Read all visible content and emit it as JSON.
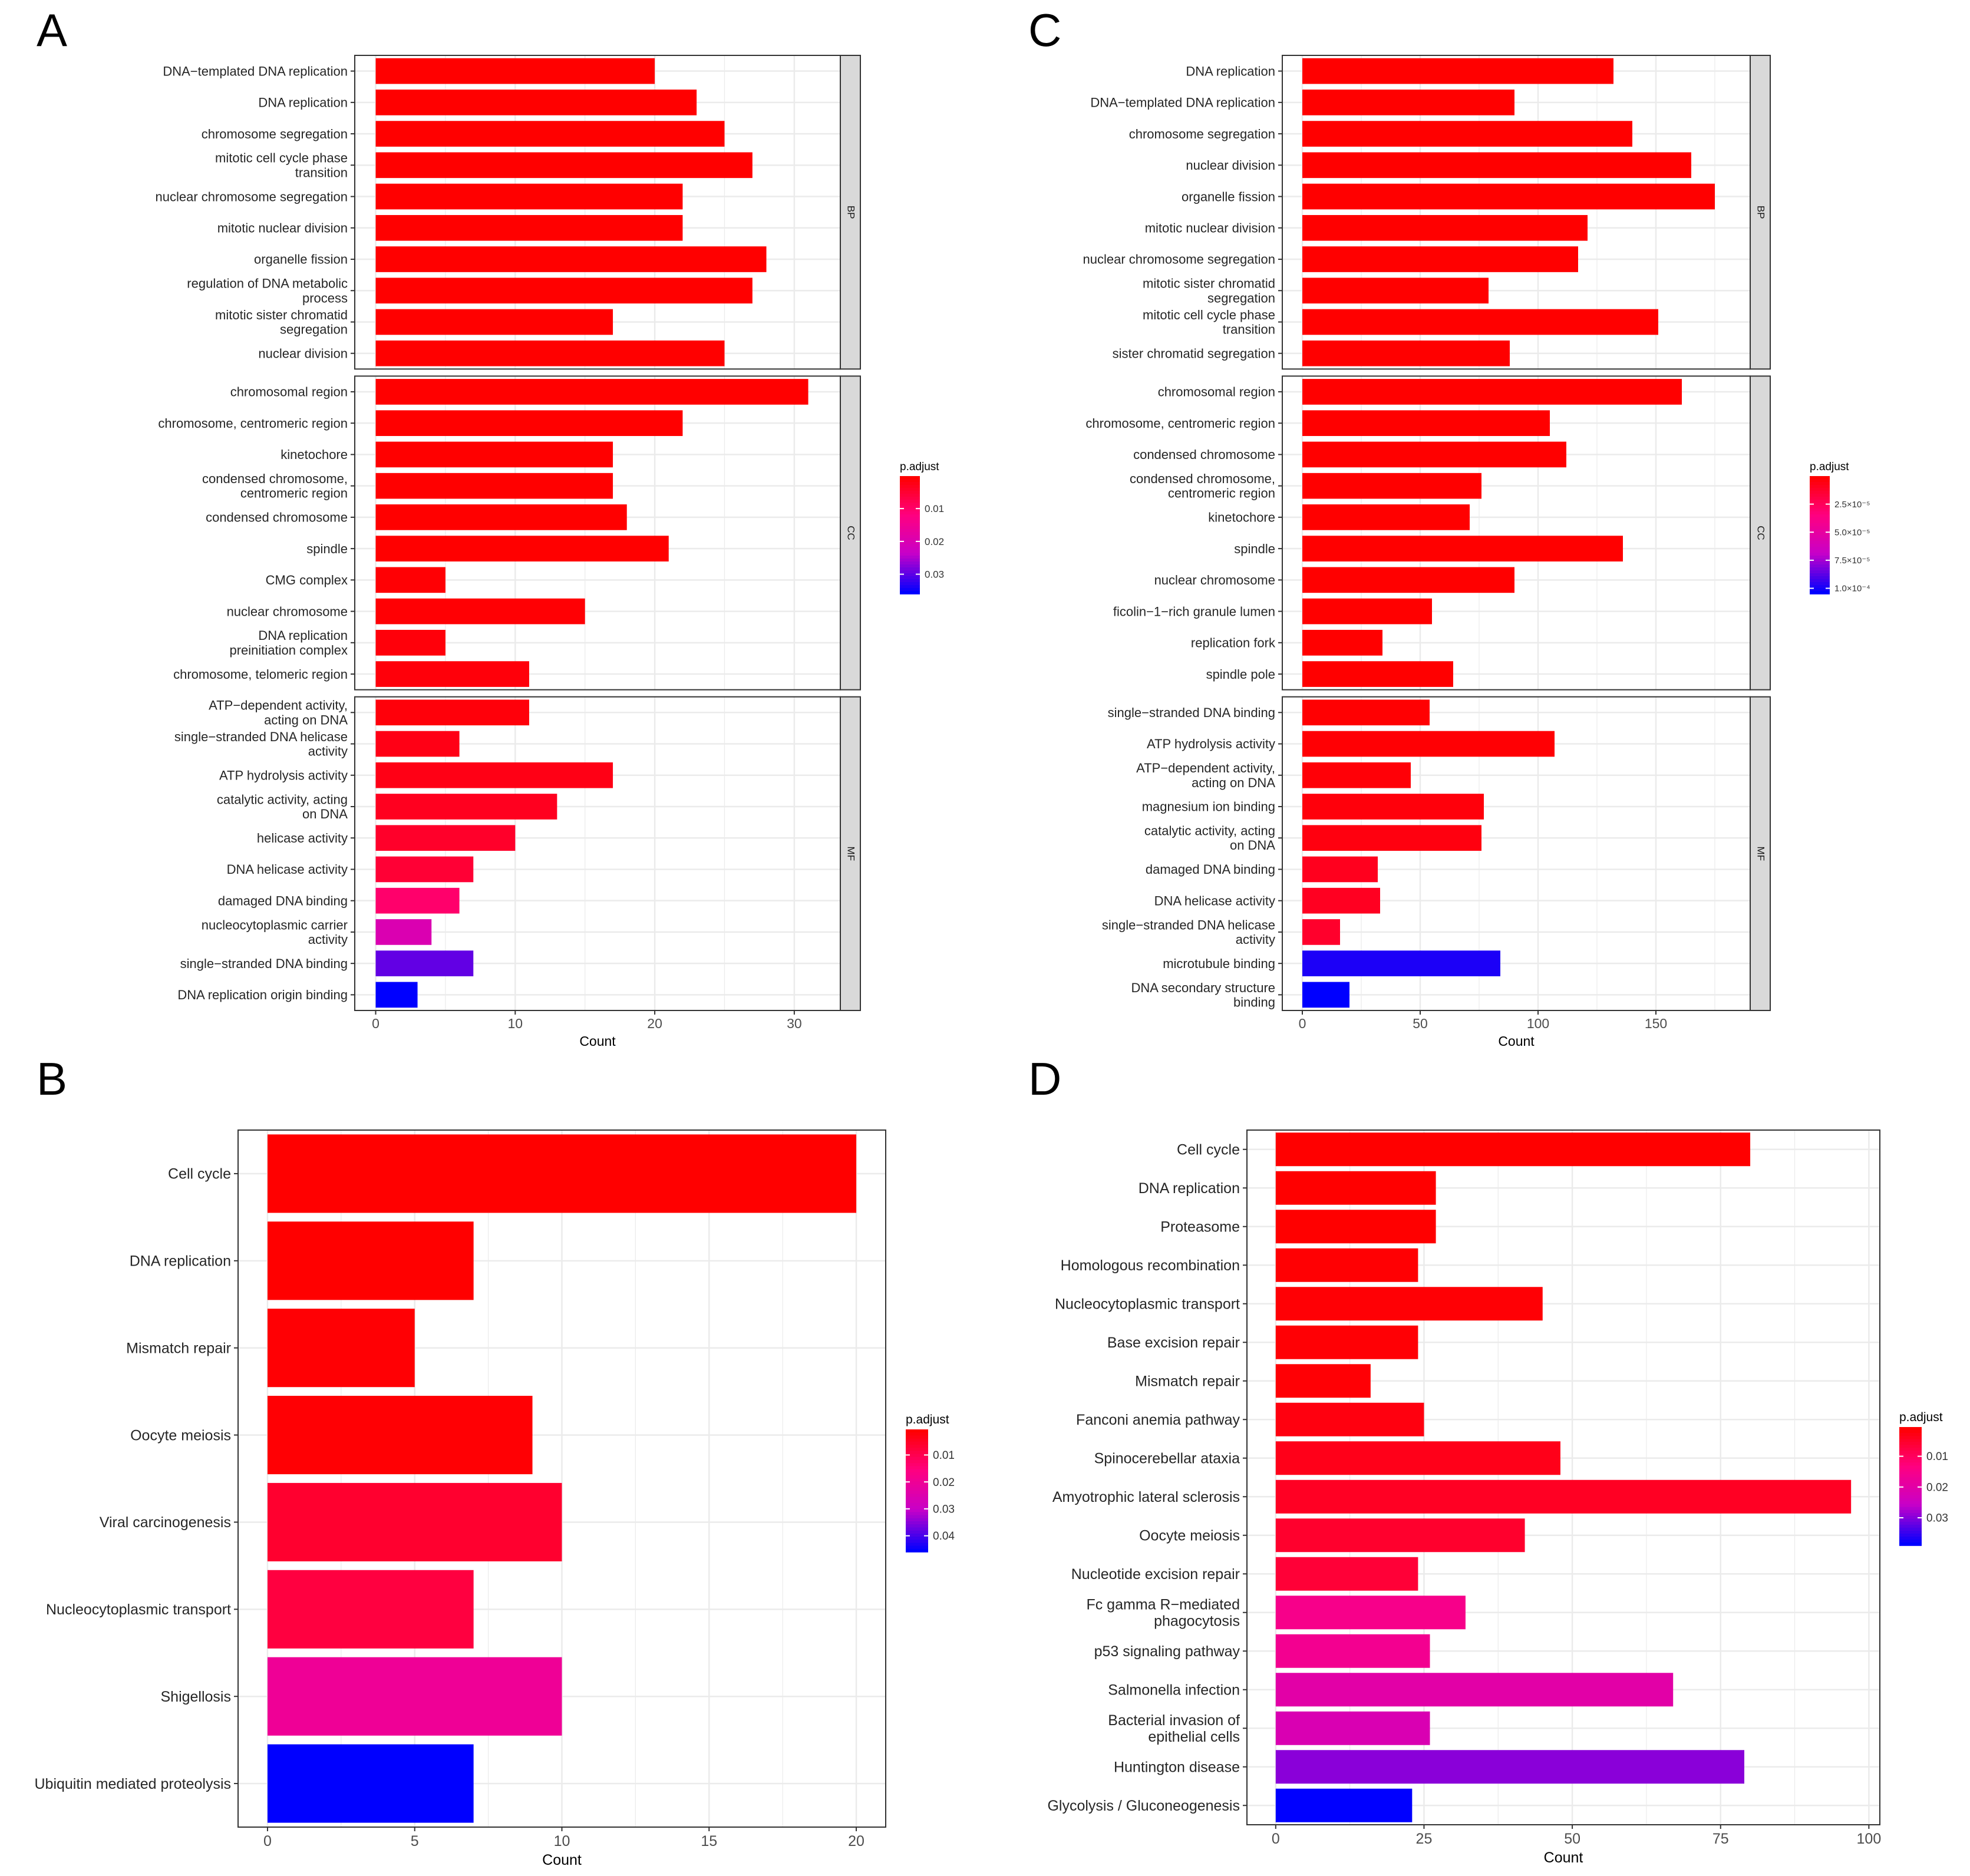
{
  "panels": {
    "A": "A",
    "B": "B",
    "C": "C",
    "D": "D"
  },
  "colors": {
    "low_p": "#ff0000",
    "mid_p": "#ff0080",
    "high_p": "#0000ff",
    "grid": "#ebebeb",
    "strip_fill": "#d9d9d9"
  },
  "chart_data": [
    {
      "panel": "A",
      "type": "bar",
      "orientation": "horizontal",
      "xlabel": "Count",
      "xlim": [
        -1.5,
        33.3
      ],
      "xticks": [
        0,
        10,
        20,
        30
      ],
      "legend": {
        "title": "p.adjust",
        "position": "right",
        "range": [
          0.0001,
          0.036
        ],
        "ticks": [
          0.01,
          0.02,
          0.03
        ],
        "tick_labels": [
          "0.01",
          "0.02",
          "0.03"
        ]
      },
      "facets": [
        {
          "name": "BP",
          "categories": [
            "DNA−templated DNA replication",
            "DNA replication",
            "chromosome segregation",
            "mitotic cell cycle phase\ntransition",
            "nuclear chromosome segregation",
            "mitotic nuclear division",
            "organelle fission",
            "regulation of DNA metabolic\nprocess",
            "mitotic sister chromatid\nsegregation",
            "nuclear division"
          ],
          "values": [
            20,
            23,
            25,
            27,
            22,
            22,
            28,
            27,
            17,
            25
          ],
          "p_adjust": [
            0.0001,
            0.0001,
            0.0001,
            0.0001,
            0.0001,
            0.0001,
            0.0001,
            0.0001,
            0.0001,
            0.0001
          ]
        },
        {
          "name": "CC",
          "categories": [
            "chromosomal region",
            "chromosome, centromeric region",
            "kinetochore",
            "condensed chromosome,\ncentromeric region",
            "condensed chromosome",
            "spindle",
            "CMG complex",
            "nuclear chromosome",
            "DNA replication\npreinitiation complex",
            "chromosome, telomeric region"
          ],
          "values": [
            31,
            22,
            17,
            17,
            18,
            21,
            5,
            15,
            5,
            11
          ],
          "p_adjust": [
            0.0001,
            0.0001,
            0.0001,
            0.0001,
            0.0001,
            0.0001,
            0.0005,
            0.0005,
            0.001,
            0.001
          ]
        },
        {
          "name": "MF",
          "categories": [
            "ATP−dependent activity,\nacting on DNA",
            "single−stranded DNA helicase\nactivity",
            "ATP hydrolysis activity",
            "catalytic activity, acting\non DNA",
            "helicase activity",
            "DNA helicase activity",
            "damaged DNA binding",
            "nucleocytoplasmic carrier\nactivity",
            "single−stranded DNA binding",
            "DNA replication origin binding"
          ],
          "values": [
            11,
            6,
            17,
            13,
            10,
            7,
            6,
            4,
            7,
            3
          ],
          "p_adjust": [
            0.001,
            0.002,
            0.002,
            0.003,
            0.004,
            0.005,
            0.01,
            0.02,
            0.03,
            0.036
          ]
        }
      ]
    },
    {
      "panel": "B",
      "type": "bar",
      "orientation": "horizontal",
      "xlabel": "Count",
      "xlim": [
        -1.0,
        21.0
      ],
      "xticks": [
        0,
        5,
        10,
        15,
        20
      ],
      "legend": {
        "title": "p.adjust",
        "position": "right",
        "range": [
          0.0005,
          0.046
        ],
        "ticks": [
          0.01,
          0.02,
          0.03,
          0.04
        ],
        "tick_labels": [
          "0.01",
          "0.02",
          "0.03",
          "0.04"
        ]
      },
      "facets": [
        {
          "name": "",
          "categories": [
            "Cell cycle",
            "DNA replication",
            "Mismatch repair",
            "Oocyte meiosis",
            "Viral carcinogenesis",
            "Nucleocytoplasmic transport",
            "Shigellosis",
            "Ubiquitin mediated proteolysis"
          ],
          "values": [
            20,
            7,
            5,
            9,
            10,
            7,
            10,
            7
          ],
          "p_adjust": [
            0.0005,
            0.0005,
            0.001,
            0.001,
            0.006,
            0.008,
            0.02,
            0.046
          ]
        }
      ]
    },
    {
      "panel": "C",
      "type": "bar",
      "orientation": "horizontal",
      "xlabel": "Count",
      "xlim": [
        -8.5,
        190
      ],
      "xticks": [
        0,
        50,
        100,
        150
      ],
      "legend": {
        "title": "p.adjust",
        "position": "right",
        "range": [
          0.0,
          0.000105
        ],
        "ticks": [
          2.5e-05,
          5e-05,
          7.5e-05,
          0.0001
        ],
        "tick_labels": [
          "2.5×10⁻⁵",
          "5.0×10⁻⁵",
          "7.5×10⁻⁵",
          "1.0×10⁻⁴"
        ]
      },
      "facets": [
        {
          "name": "BP",
          "categories": [
            "DNA replication",
            "DNA−templated DNA replication",
            "chromosome segregation",
            "nuclear division",
            "organelle fission",
            "mitotic nuclear division",
            "nuclear chromosome segregation",
            "mitotic sister chromatid\nsegregation",
            "mitotic cell cycle phase\ntransition",
            "sister chromatid segregation"
          ],
          "values": [
            132,
            90,
            140,
            165,
            175,
            121,
            117,
            79,
            151,
            88
          ],
          "p_adjust": [
            0,
            0,
            0,
            0,
            0,
            0,
            0,
            0,
            0,
            0
          ]
        },
        {
          "name": "CC",
          "categories": [
            "chromosomal region",
            "chromosome, centromeric region",
            "condensed chromosome",
            "condensed chromosome,\ncentromeric region",
            "kinetochore",
            "spindle",
            "nuclear chromosome",
            "ficolin−1−rich granule lumen",
            "replication fork",
            "spindle pole"
          ],
          "values": [
            161,
            105,
            112,
            76,
            71,
            136,
            90,
            55,
            34,
            64
          ],
          "p_adjust": [
            0,
            0,
            0,
            0,
            0,
            0,
            0,
            0,
            0,
            0
          ]
        },
        {
          "name": "MF",
          "categories": [
            "single−stranded DNA binding",
            "ATP hydrolysis activity",
            "ATP−dependent activity,\nacting on DNA",
            "magnesium ion binding",
            "catalytic activity, acting\non DNA",
            "damaged DNA binding",
            "DNA helicase activity",
            "single−stranded DNA helicase\nactivity",
            "microtubule binding",
            "DNA secondary structure\nbinding"
          ],
          "values": [
            54,
            107,
            46,
            77,
            76,
            32,
            33,
            16,
            84,
            20
          ],
          "p_adjust": [
            5e-07,
            1e-06,
            2e-06,
            3e-06,
            4e-06,
            8e-06,
            9e-06,
            1.2e-05,
            0.0001,
            0.000105
          ]
        }
      ]
    },
    {
      "panel": "D",
      "type": "bar",
      "orientation": "horizontal",
      "xlabel": "Count",
      "xlim": [
        -4.85,
        101.85
      ],
      "xticks": [
        0,
        25,
        50,
        75,
        100
      ],
      "legend": {
        "title": "p.adjust",
        "position": "right",
        "range": [
          0.0005,
          0.039
        ],
        "ticks": [
          0.01,
          0.02,
          0.03
        ],
        "tick_labels": [
          "0.01",
          "0.02",
          "0.03"
        ]
      },
      "facets": [
        {
          "name": "",
          "categories": [
            "Cell cycle",
            "DNA replication",
            "Proteasome",
            "Homologous recombination",
            "Nucleocytoplasmic transport",
            "Base excision repair",
            "Mismatch repair",
            "Fanconi anemia pathway",
            "Spinocerebellar ataxia",
            "Amyotrophic lateral sclerosis",
            "Oocyte meiosis",
            "Nucleotide excision repair",
            "Fc gamma R−mediated\nphagocytosis",
            "p53 signaling pathway",
            "Salmonella infection",
            "Bacterial invasion of\nepithelial cells",
            "Huntington disease",
            "Glycolysis / Gluconeogenesis"
          ],
          "values": [
            80,
            27,
            27,
            24,
            45,
            24,
            16,
            25,
            48,
            97,
            42,
            24,
            32,
            26,
            67,
            26,
            79,
            23
          ],
          "p_adjust": [
            0.0005,
            0.0005,
            0.0005,
            0.0008,
            0.001,
            0.001,
            0.001,
            0.002,
            0.003,
            0.004,
            0.005,
            0.006,
            0.015,
            0.016,
            0.02,
            0.022,
            0.03,
            0.039
          ]
        }
      ]
    }
  ]
}
